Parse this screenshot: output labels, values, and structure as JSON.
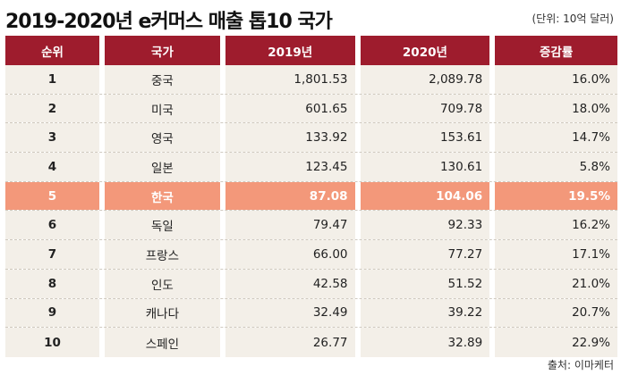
{
  "title": "2019-2020년 e커머스 매출 톱10 국가",
  "unit": "(단위: 10억 달러)",
  "source": "출처: 이마케터",
  "headers": [
    "순위",
    "국가",
    "2019년",
    "2020년",
    "증감률"
  ],
  "rows": [
    {
      "rank": "1",
      "country": "중국",
      "y2019": "1,801.53",
      "y2020": "2,089.78",
      "change": "16.0%"
    },
    {
      "rank": "2",
      "country": "미국",
      "y2019": "601.65",
      "y2020": "709.78",
      "change": "18.0%"
    },
    {
      "rank": "3",
      "country": "영국",
      "y2019": "133.92",
      "y2020": "153.61",
      "change": "14.7%"
    },
    {
      "rank": "4",
      "country": "일본",
      "y2019": "123.45",
      "y2020": "130.61",
      "change": "5.8%"
    },
    {
      "rank": "5",
      "country": "한국",
      "y2019": "87.08",
      "y2020": "104.06",
      "change": "19.5%"
    },
    {
      "rank": "6",
      "country": "독일",
      "y2019": "79.47",
      "y2020": "92.33",
      "change": "16.2%"
    },
    {
      "rank": "7",
      "country": "프랑스",
      "y2019": "66.00",
      "y2020": "77.27",
      "change": "17.1%"
    },
    {
      "rank": "8",
      "country": "인도",
      "y2019": "42.58",
      "y2020": "51.52",
      "change": "21.0%"
    },
    {
      "rank": "9",
      "country": "캐나다",
      "y2019": "32.49",
      "y2020": "39.22",
      "change": "20.7%"
    },
    {
      "rank": "10",
      "country": "스페인",
      "y2019": "26.77",
      "y2020": "32.89",
      "change": "22.9%"
    }
  ],
  "highlight_rank": "5",
  "colors": {
    "header": "#9e1c2d",
    "row": "#f3efe8",
    "highlight": "#f3987a"
  }
}
